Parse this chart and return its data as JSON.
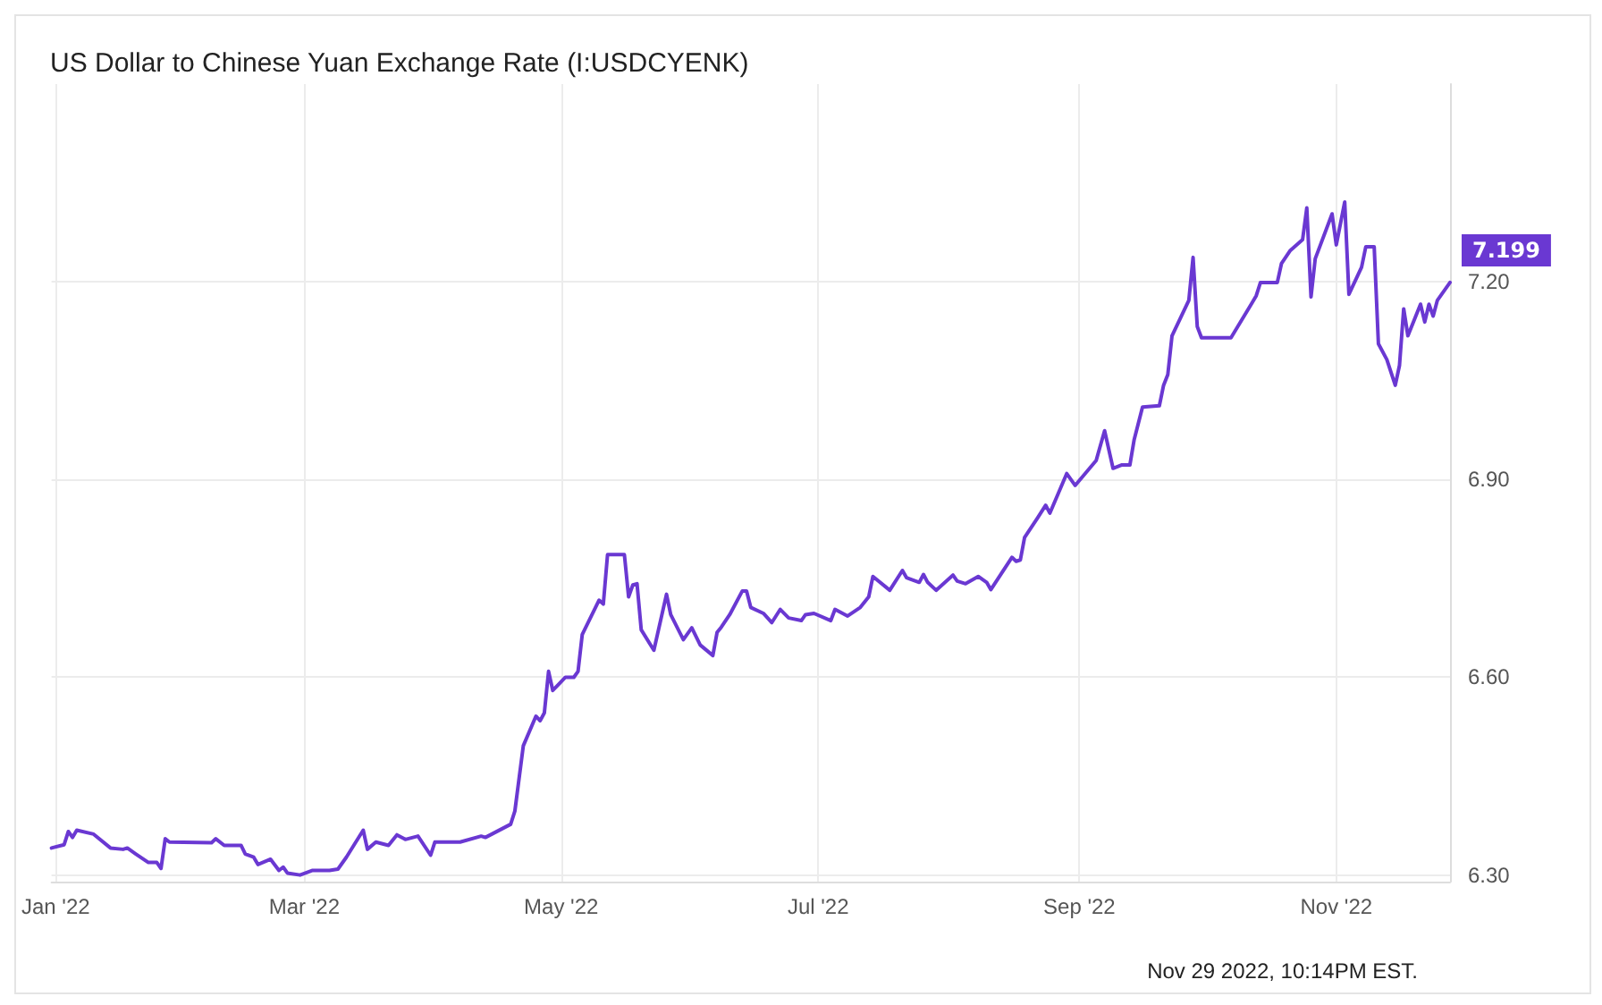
{
  "chart_data": {
    "type": "line",
    "title": "US Dollar to Chinese Yuan Exchange Rate (I:USDCYENK)",
    "x": [
      "2021-12-31",
      "2022-01-03",
      "2022-01-04",
      "2022-01-05",
      "2022-01-06",
      "2022-01-10",
      "2022-01-14",
      "2022-01-17",
      "2022-01-18",
      "2022-01-20",
      "2022-01-23",
      "2022-01-25",
      "2022-01-26",
      "2022-01-27",
      "2022-01-28",
      "2022-02-07",
      "2022-02-08",
      "2022-02-10",
      "2022-02-14",
      "2022-02-15",
      "2022-02-17",
      "2022-02-18",
      "2022-02-21",
      "2022-02-23",
      "2022-02-24",
      "2022-02-25",
      "2022-02-28",
      "2022-03-03",
      "2022-03-07",
      "2022-03-09",
      "2022-03-11",
      "2022-03-15",
      "2022-03-16",
      "2022-03-18",
      "2022-03-21",
      "2022-03-23",
      "2022-03-25",
      "2022-03-28",
      "2022-03-31",
      "2022-04-01",
      "2022-04-07",
      "2022-04-12",
      "2022-04-13",
      "2022-04-19",
      "2022-04-20",
      "2022-04-22",
      "2022-04-25",
      "2022-04-26",
      "2022-04-27",
      "2022-04-28",
      "2022-04-29",
      "2022-05-02",
      "2022-05-04",
      "2022-05-05",
      "2022-05-06",
      "2022-05-10",
      "2022-05-11",
      "2022-05-12",
      "2022-05-16",
      "2022-05-17",
      "2022-05-18",
      "2022-05-19",
      "2022-05-20",
      "2022-05-23",
      "2022-05-26",
      "2022-05-27",
      "2022-05-30",
      "2022-06-01",
      "2022-06-03",
      "2022-06-06",
      "2022-06-07",
      "2022-06-08",
      "2022-06-10",
      "2022-06-13",
      "2022-06-14",
      "2022-06-15",
      "2022-06-18",
      "2022-06-20",
      "2022-06-22",
      "2022-06-24",
      "2022-06-27",
      "2022-06-28",
      "2022-06-30",
      "2022-07-04",
      "2022-07-05",
      "2022-07-08",
      "2022-07-11",
      "2022-07-13",
      "2022-07-14",
      "2022-07-18",
      "2022-07-21",
      "2022-07-22",
      "2022-07-25",
      "2022-07-26",
      "2022-07-27",
      "2022-07-29",
      "2022-08-02",
      "2022-08-03",
      "2022-08-05",
      "2022-08-08",
      "2022-08-10",
      "2022-08-11",
      "2022-08-16",
      "2022-08-17",
      "2022-08-18",
      "2022-08-19",
      "2022-08-22",
      "2022-08-24",
      "2022-08-25",
      "2022-08-29",
      "2022-08-31",
      "2022-09-05",
      "2022-09-07",
      "2022-09-09",
      "2022-09-11",
      "2022-09-13",
      "2022-09-14",
      "2022-09-16",
      "2022-09-20",
      "2022-09-21",
      "2022-09-22",
      "2022-09-23",
      "2022-09-27",
      "2022-09-28",
      "2022-09-29",
      "2022-09-30",
      "2022-10-07",
      "2022-10-12",
      "2022-10-13",
      "2022-10-14",
      "2022-10-18",
      "2022-10-19",
      "2022-10-21",
      "2022-10-24",
      "2022-10-25",
      "2022-10-26",
      "2022-10-27",
      "2022-10-31",
      "2022-11-01",
      "2022-11-03",
      "2022-11-04",
      "2022-11-07",
      "2022-11-08",
      "2022-11-10",
      "2022-11-11",
      "2022-11-13",
      "2022-11-15",
      "2022-11-16",
      "2022-11-17",
      "2022-11-18",
      "2022-11-21",
      "2022-11-22",
      "2022-11-23",
      "2022-11-24",
      "2022-11-25",
      "2022-11-28"
    ],
    "series": [
      {
        "color": "#6a38d2",
        "values": [
          6.341,
          6.346,
          6.366,
          6.357,
          6.368,
          6.362,
          6.341,
          6.339,
          6.341,
          6.332,
          6.319,
          6.319,
          6.31,
          6.355,
          6.35,
          6.349,
          6.355,
          6.345,
          6.345,
          6.332,
          6.327,
          6.316,
          6.324,
          6.307,
          6.312,
          6.303,
          6.3,
          6.307,
          6.307,
          6.309,
          6.327,
          6.368,
          6.339,
          6.35,
          6.345,
          6.361,
          6.354,
          6.359,
          6.33,
          6.35,
          6.35,
          6.359,
          6.357,
          6.377,
          6.397,
          6.496,
          6.541,
          6.534,
          6.546,
          6.609,
          6.58,
          6.6,
          6.6,
          6.609,
          6.665,
          6.717,
          6.711,
          6.786,
          6.786,
          6.722,
          6.74,
          6.742,
          6.672,
          6.641,
          6.726,
          6.695,
          6.657,
          6.675,
          6.649,
          6.633,
          6.668,
          6.676,
          6.695,
          6.731,
          6.731,
          6.706,
          6.697,
          6.683,
          6.703,
          6.69,
          6.686,
          6.695,
          6.697,
          6.686,
          6.703,
          6.693,
          6.706,
          6.722,
          6.753,
          6.732,
          6.762,
          6.751,
          6.744,
          6.756,
          6.744,
          6.732,
          6.755,
          6.746,
          6.742,
          6.753,
          6.744,
          6.733,
          6.782,
          6.776,
          6.778,
          6.812,
          6.841,
          6.861,
          6.849,
          6.909,
          6.891,
          6.929,
          6.974,
          6.917,
          6.922,
          6.922,
          6.96,
          7.01,
          7.012,
          7.043,
          7.059,
          7.118,
          7.172,
          7.237,
          7.132,
          7.115,
          7.115,
          7.168,
          7.179,
          7.199,
          7.199,
          7.228,
          7.247,
          7.264,
          7.312,
          7.177,
          7.235,
          7.303,
          7.256,
          7.321,
          7.181,
          7.222,
          7.253,
          7.253,
          7.106,
          7.082,
          7.043,
          7.073,
          7.159,
          7.118,
          7.166,
          7.139,
          7.166,
          7.148,
          7.172,
          7.199
        ]
      }
    ],
    "xlim": [
      "2021-12-31",
      "2022-11-28"
    ],
    "xticks": [
      {
        "value": "2022-01-01",
        "label": "Jan '22"
      },
      {
        "value": "2022-03-01",
        "label": "Mar '22"
      },
      {
        "value": "2022-05-01",
        "label": "May '22"
      },
      {
        "value": "2022-07-01",
        "label": "Jul '22"
      },
      {
        "value": "2022-09-01",
        "label": "Sep '22"
      },
      {
        "value": "2022-11-01",
        "label": "Nov '22"
      }
    ],
    "ylim": [
      6.29,
      7.5
    ],
    "yticks": [
      {
        "value": 6.3,
        "label": "6.30"
      },
      {
        "value": 6.6,
        "label": "6.60"
      },
      {
        "value": 6.9,
        "label": "6.90"
      },
      {
        "value": 7.2,
        "label": "7.20"
      }
    ],
    "grid": true,
    "line_style": "solid",
    "marker": "none",
    "annotations": [
      {
        "text": "7.199",
        "x": "2022-11-28",
        "y": 7.199
      },
      "Nov 29 2022, 10:14PM EST."
    ]
  }
}
